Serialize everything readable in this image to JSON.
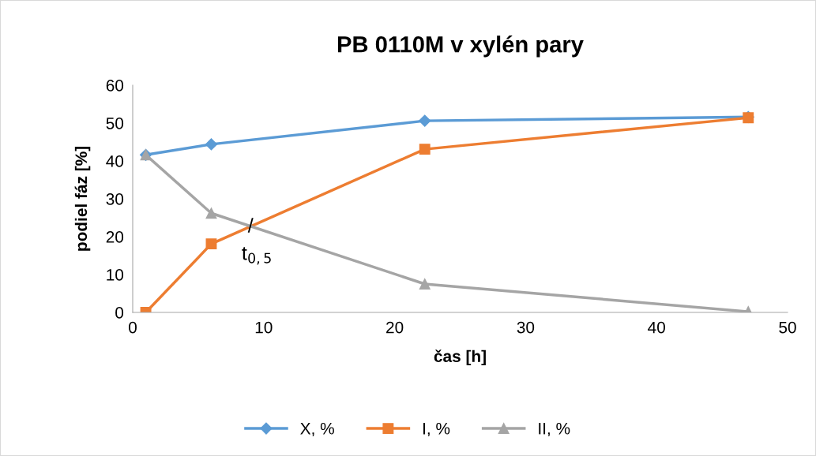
{
  "chart_data": {
    "type": "line",
    "title": "PB 0110M v xylén pary",
    "xlabel": "čas [h]",
    "ylabel": "podiel fáz [%]",
    "x": [
      1,
      6,
      22.3,
      47
    ],
    "series": [
      {
        "name": "X, %",
        "color": "#5b9bd5",
        "marker": "diamond",
        "values": [
          41.6,
          44.4,
          50.6,
          51.6
        ]
      },
      {
        "name": "I, %",
        "color": "#ed7d31",
        "marker": "square",
        "values": [
          0,
          18.1,
          43.1,
          51.4
        ]
      },
      {
        "name": "II, %",
        "color": "#a5a5a5",
        "marker": "triangle",
        "values": [
          41.6,
          26.2,
          7.5,
          0.2
        ]
      }
    ],
    "xlim": [
      0,
      50
    ],
    "xticks": [
      0,
      10,
      20,
      30,
      40,
      50
    ],
    "ylim": [
      0,
      60
    ],
    "yticks": [
      0,
      10,
      20,
      30,
      40,
      50,
      60
    ],
    "grid": false,
    "legend": "bottom",
    "annotations": [
      {
        "text": "/",
        "x": 9,
        "y": 22.5
      },
      "t$_{0,5}$"
    ]
  }
}
